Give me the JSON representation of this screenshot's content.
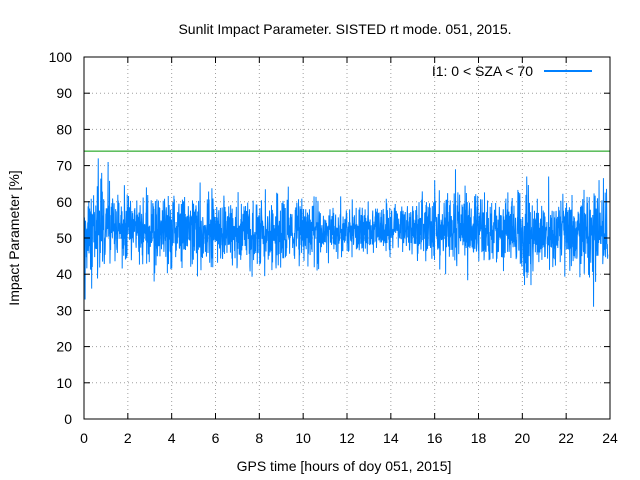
{
  "chart_data": {
    "type": "line",
    "title": "Sunlit Impact Parameter. SISTED rt mode. 051, 2015.",
    "xlabel": "GPS time [hours of doy 051, 2015]",
    "ylabel": "Impact Parameter [%]",
    "xlim": [
      0,
      24
    ],
    "ylim": [
      0,
      100
    ],
    "xticks": [
      0,
      2,
      4,
      6,
      8,
      10,
      12,
      14,
      16,
      18,
      20,
      22,
      24
    ],
    "yticks": [
      0,
      10,
      20,
      30,
      40,
      50,
      60,
      70,
      80,
      90,
      100
    ],
    "grid": true,
    "legend_position": "top-right",
    "series": [
      {
        "name": "I1: 0 < SZA < 70",
        "color": "#0080ff",
        "x_range": [
          0,
          23.9
        ],
        "mean": 52,
        "typical_band": [
          44,
          60
        ],
        "notable_points": [
          {
            "x": 0.05,
            "y": 33
          },
          {
            "x": 0.35,
            "y": 36
          },
          {
            "x": 0.65,
            "y": 72
          },
          {
            "x": 1.1,
            "y": 71
          },
          {
            "x": 3.2,
            "y": 38
          },
          {
            "x": 16.0,
            "y": 66
          },
          {
            "x": 16.5,
            "y": 40
          },
          {
            "x": 16.95,
            "y": 69
          },
          {
            "x": 20.1,
            "y": 37
          },
          {
            "x": 20.2,
            "y": 67
          },
          {
            "x": 21.2,
            "y": 67
          },
          {
            "x": 23.25,
            "y": 31
          },
          {
            "x": 23.5,
            "y": 66
          }
        ]
      }
    ],
    "reference_line": {
      "y": 74,
      "color": "#009900"
    }
  }
}
